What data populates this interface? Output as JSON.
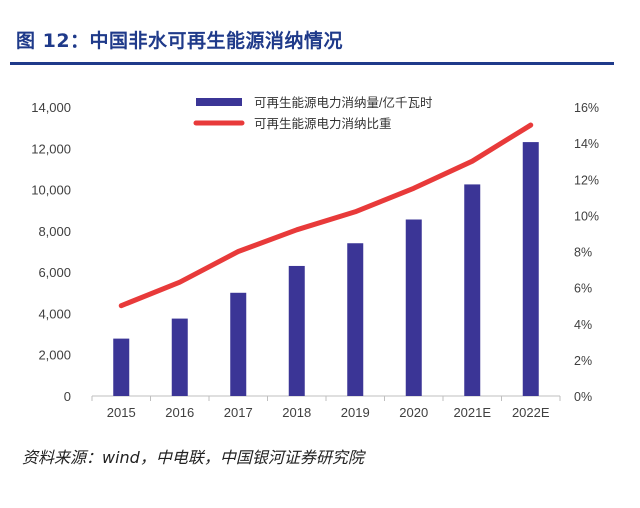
{
  "title": "图 12：中国非水可再生能源消纳情况",
  "source": "资料来源：wind，中电联，中国银河证券研究院",
  "colors": {
    "bar": "#3b3596",
    "line": "#e83a3a",
    "title": "#1f3a8a",
    "axis": "#404040"
  },
  "chart_data": {
    "type": "bar",
    "categories": [
      "2015",
      "2016",
      "2017",
      "2018",
      "2019",
      "2020",
      "2021E",
      "2022E"
    ],
    "series": [
      {
        "name": "可再生能源电力消纳量/亿千瓦时",
        "type": "bar",
        "axis": "left",
        "values": [
          2780,
          3750,
          5000,
          6300,
          7400,
          8550,
          10250,
          12300
        ]
      },
      {
        "name": "可再生能源电力消纳比重",
        "type": "line",
        "axis": "right",
        "values": [
          5.0,
          6.3,
          8.0,
          9.2,
          10.2,
          11.5,
          13.0,
          15.0
        ]
      }
    ],
    "y_left": {
      "ylim": [
        0,
        14000
      ],
      "ticks": [
        "0",
        "2,000",
        "4,000",
        "6,000",
        "8,000",
        "10,000",
        "12,000",
        "14,000"
      ]
    },
    "y_right": {
      "ylim": [
        0,
        16
      ],
      "ticks": [
        "0%",
        "2%",
        "4%",
        "6%",
        "8%",
        "10%",
        "12%",
        "14%",
        "16%"
      ]
    },
    "legend": "top-center",
    "grid": false
  }
}
